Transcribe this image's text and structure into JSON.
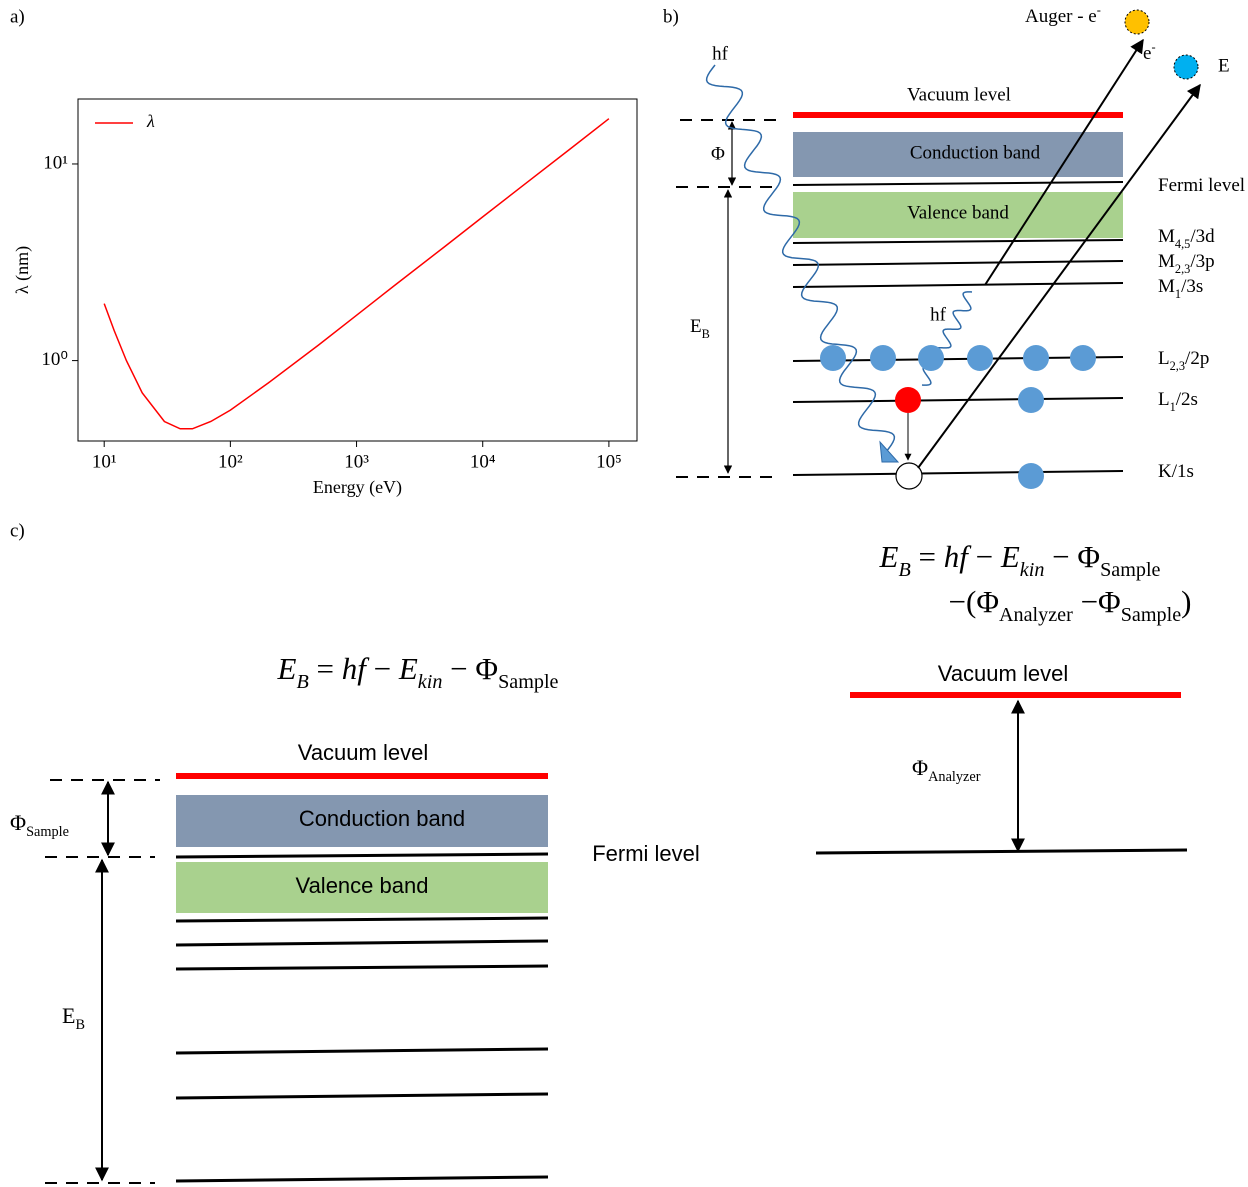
{
  "panel_labels": [
    "a)",
    "b)",
    "c)"
  ],
  "chart_data": {
    "type": "line",
    "xlabel": "Energy (eV)",
    "ylabel": "λ (nm)",
    "xscale": "log",
    "yscale": "log",
    "xlim": [
      6.2,
      167000
    ],
    "ylim": [
      0.39,
      21.4
    ],
    "xticks": [
      {
        "value": 10,
        "label": "10¹"
      },
      {
        "value": 100,
        "label": "10²"
      },
      {
        "value": 1000,
        "label": "10³"
      },
      {
        "value": 10000,
        "label": "10⁴"
      },
      {
        "value": 100000,
        "label": "10⁵"
      }
    ],
    "yticks": [
      {
        "value": 1,
        "label": "10⁰"
      },
      {
        "value": 10,
        "label": "10¹"
      }
    ],
    "legend": "upper left",
    "x": [
      10,
      12,
      15,
      20,
      30,
      40,
      50,
      70,
      100,
      200,
      500,
      1000,
      2000,
      5000,
      10000,
      20000,
      50000,
      100000
    ],
    "series": [
      {
        "name": "λ",
        "color": "#ff0000",
        "values": [
          1.95,
          1.42,
          1.0,
          0.686,
          0.49,
          0.45,
          0.45,
          0.49,
          0.56,
          0.77,
          1.2,
          1.7,
          2.41,
          3.8,
          5.38,
          7.61,
          12.0,
          17.0
        ]
      }
    ]
  },
  "panel_b": {
    "auger": [
      {
        "text": "Auger - e"
      },
      {
        "sup": "-"
      }
    ],
    "photoelectron": [
      {
        "text": "e"
      },
      {
        "sup": "-"
      }
    ],
    "edge_label": "E",
    "hf_in": "hf",
    "hf_out": "hf",
    "vacuum_level": "Vacuum level",
    "conduction_band": "Conduction band",
    "valence_band": "Valence band",
    "phi": "Φ",
    "binding_energy": [
      {
        "text": "E"
      },
      {
        "sub": "B"
      }
    ],
    "levels": [
      [
        {
          "text": "Fermi level"
        }
      ],
      [
        {
          "text": "M"
        },
        {
          "sub": "4,5"
        },
        {
          "text": "/3d"
        }
      ],
      [
        {
          "text": "M"
        },
        {
          "sub": "2,3"
        },
        {
          "text": "/3p"
        }
      ],
      [
        {
          "text": "M"
        },
        {
          "sub": "1"
        },
        {
          "text": "/3s"
        }
      ],
      [
        {
          "text": "L"
        },
        {
          "sub": "2,3"
        },
        {
          "text": "/2p"
        }
      ],
      [
        {
          "text": "L"
        },
        {
          "sub": "1"
        },
        {
          "text": "/2s"
        }
      ],
      [
        {
          "text": "K/1s"
        }
      ]
    ]
  },
  "panel_c": {
    "equation": [
      {
        "math": "E"
      },
      {
        "msub": "B"
      },
      {
        "text": " = "
      },
      {
        "math": "hf"
      },
      {
        "text": " − "
      },
      {
        "math": "E"
      },
      {
        "msub": "kin"
      },
      {
        "text": " − Φ"
      },
      {
        "sub": "Sample"
      }
    ],
    "vacuum_level": "Vacuum level",
    "conduction_band": "Conduction band",
    "valence_band": "Valence band",
    "fermi_level": "Fermi level",
    "phi_sample": [
      {
        "text": "Φ"
      },
      {
        "sub": "Sample"
      }
    ],
    "binding_energy": [
      {
        "text": "E"
      },
      {
        "sub": "B"
      }
    ],
    "analyzer": {
      "equation_line1": [
        {
          "math": "E"
        },
        {
          "msub": "B"
        },
        {
          "text": " = "
        },
        {
          "math": "hf"
        },
        {
          "text": " − "
        },
        {
          "math": "E"
        },
        {
          "msub": "kin"
        },
        {
          "text": " − Φ"
        },
        {
          "sub": "Sample"
        }
      ],
      "equation_line2": [
        {
          "text": "−(Φ"
        },
        {
          "sub": "Analyzer"
        },
        {
          "text": " −Φ"
        },
        {
          "sub": "Sample"
        },
        {
          "text": ")"
        }
      ],
      "vacuum_level": "Vacuum level",
      "phi_analyzer": [
        {
          "text": "Φ"
        },
        {
          "sub": "Analyzer"
        }
      ]
    }
  }
}
